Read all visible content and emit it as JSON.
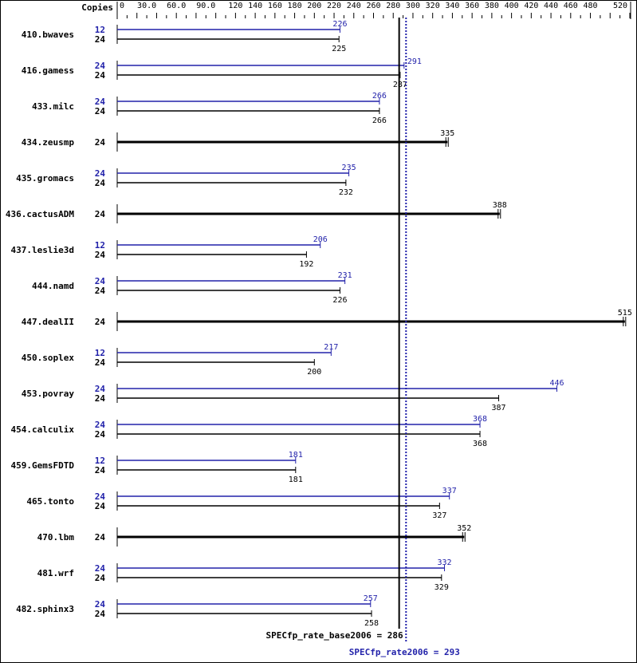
{
  "chart_data": {
    "type": "bar",
    "orientation": "horizontal",
    "copies_header": "Copies",
    "xlim": [
      0,
      520
    ],
    "tick_labels": [
      "0",
      "30.0",
      "60.0",
      "90.0",
      "120",
      "140",
      "160",
      "180",
      "200",
      "220",
      "240",
      "260",
      "280",
      "300",
      "320",
      "340",
      "360",
      "380",
      "400",
      "420",
      "440",
      "460",
      "480",
      "520"
    ],
    "tick_values": [
      0,
      30,
      60,
      90,
      120,
      140,
      160,
      180,
      200,
      220,
      240,
      260,
      280,
      300,
      320,
      340,
      360,
      380,
      400,
      420,
      440,
      460,
      480,
      520
    ],
    "colors": {
      "peak": "#2222aa",
      "base": "#000000"
    },
    "benchmarks": [
      {
        "name": "410.bwaves",
        "peak_copies": "12",
        "peak": 226,
        "base_copies": "24",
        "base": 225
      },
      {
        "name": "416.gamess",
        "peak_copies": "24",
        "peak": 291,
        "base_copies": "24",
        "base": 287
      },
      {
        "name": "433.milc",
        "peak_copies": "24",
        "peak": 266,
        "base_copies": "24",
        "base": 266
      },
      {
        "name": "434.zeusmp",
        "base_copies": "24",
        "base": 335
      },
      {
        "name": "435.gromacs",
        "peak_copies": "24",
        "peak": 235,
        "base_copies": "24",
        "base": 232
      },
      {
        "name": "436.cactusADM",
        "base_copies": "24",
        "base": 388
      },
      {
        "name": "437.leslie3d",
        "peak_copies": "12",
        "peak": 206,
        "base_copies": "24",
        "base": 192
      },
      {
        "name": "444.namd",
        "peak_copies": "24",
        "peak": 231,
        "base_copies": "24",
        "base": 226
      },
      {
        "name": "447.dealII",
        "base_copies": "24",
        "base": 515
      },
      {
        "name": "450.soplex",
        "peak_copies": "12",
        "peak": 217,
        "base_copies": "24",
        "base": 200
      },
      {
        "name": "453.povray",
        "peak_copies": "24",
        "peak": 446,
        "base_copies": "24",
        "base": 387
      },
      {
        "name": "454.calculix",
        "peak_copies": "24",
        "peak": 368,
        "base_copies": "24",
        "base": 368
      },
      {
        "name": "459.GemsFDTD",
        "peak_copies": "12",
        "peak": 181,
        "base_copies": "24",
        "base": 181
      },
      {
        "name": "465.tonto",
        "peak_copies": "24",
        "peak": 337,
        "base_copies": "24",
        "base": 327
      },
      {
        "name": "470.lbm",
        "base_copies": "24",
        "base": 352
      },
      {
        "name": "481.wrf",
        "peak_copies": "24",
        "peak": 332,
        "base_copies": "24",
        "base": 329
      },
      {
        "name": "482.sphinx3",
        "peak_copies": "24",
        "peak": 257,
        "base_copies": "24",
        "base": 258
      }
    ],
    "base_metric": {
      "label": "SPECfp_rate_base2006 = 286",
      "value": 286
    },
    "peak_metric": {
      "label": "SPECfp_rate2006 = 293",
      "value": 293
    }
  }
}
